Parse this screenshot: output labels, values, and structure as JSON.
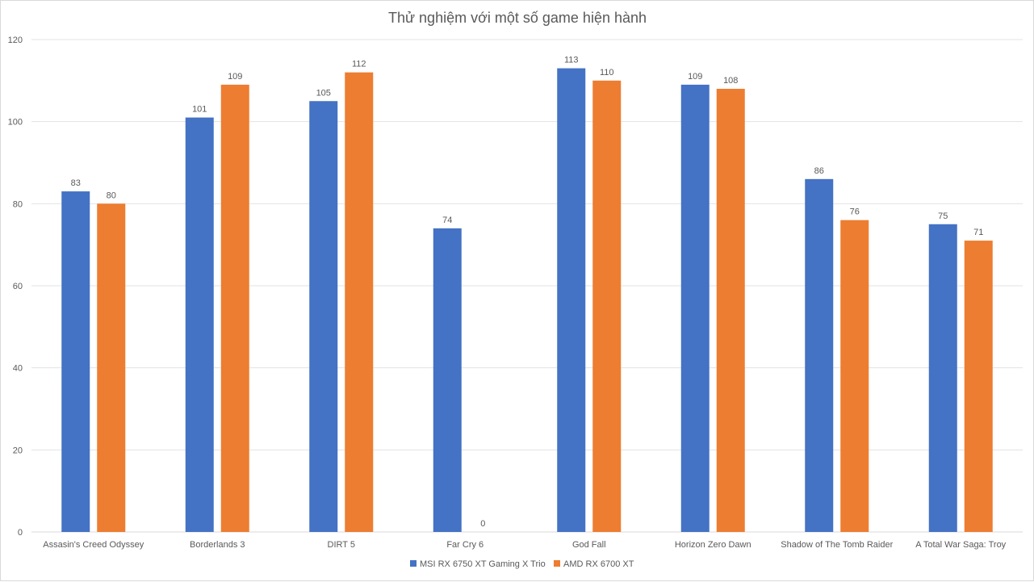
{
  "chart_data": {
    "type": "bar",
    "title": "Thử nghiệm với một số game hiện hành",
    "categories": [
      "Assasin's Creed Odyssey",
      "Borderlands 3",
      "DIRT 5",
      "Far Cry 6",
      "God Fall",
      "Horizon Zero Dawn",
      "Shadow of The Tomb Raider",
      "A Total War Saga: Troy"
    ],
    "series": [
      {
        "name": "MSI RX 6750 XT Gaming X Trio",
        "color": "#4472C4",
        "values": [
          83,
          101,
          105,
          74,
          113,
          109,
          86,
          75
        ]
      },
      {
        "name": "AMD RX 6700 XT",
        "color": "#ED7D31",
        "values": [
          80,
          109,
          112,
          0,
          110,
          108,
          76,
          71
        ]
      }
    ],
    "yticks": [
      "0",
      "20",
      "40",
      "60",
      "80",
      "100",
      "120"
    ],
    "ylim": [
      0,
      120
    ],
    "grid": true,
    "legend_position": "bottom",
    "xlabel": "",
    "ylabel": ""
  }
}
